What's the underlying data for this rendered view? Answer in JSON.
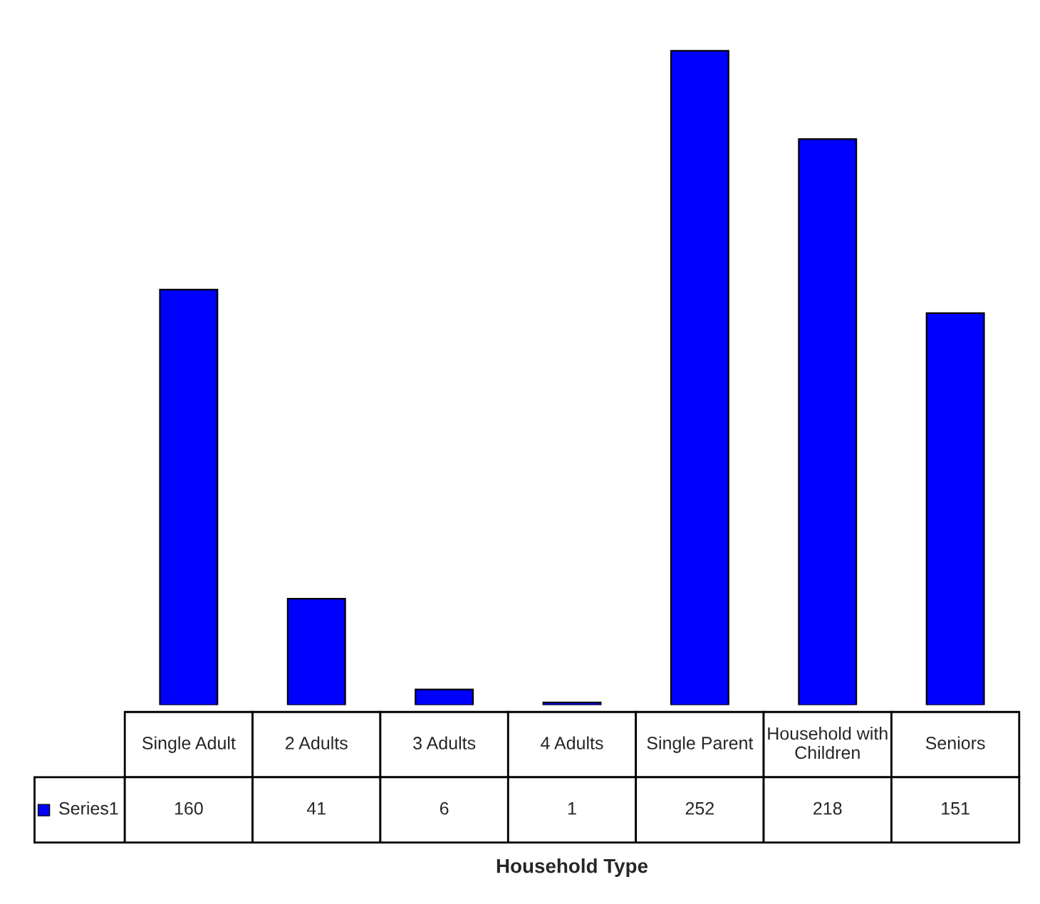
{
  "chart_data": {
    "type": "bar",
    "annotations": [
      "Household Type"
    ],
    "categories": [
      "Single Adult",
      "2 Adults",
      "3 Adults",
      "4 Adults",
      "Single Parent",
      "Household with Children",
      "Seniors"
    ],
    "series": [
      {
        "name": "Series1",
        "color": "#0000ff",
        "values": [
          160,
          41,
          6,
          1,
          252,
          218,
          151
        ]
      }
    ],
    "data_labels": true
  }
}
